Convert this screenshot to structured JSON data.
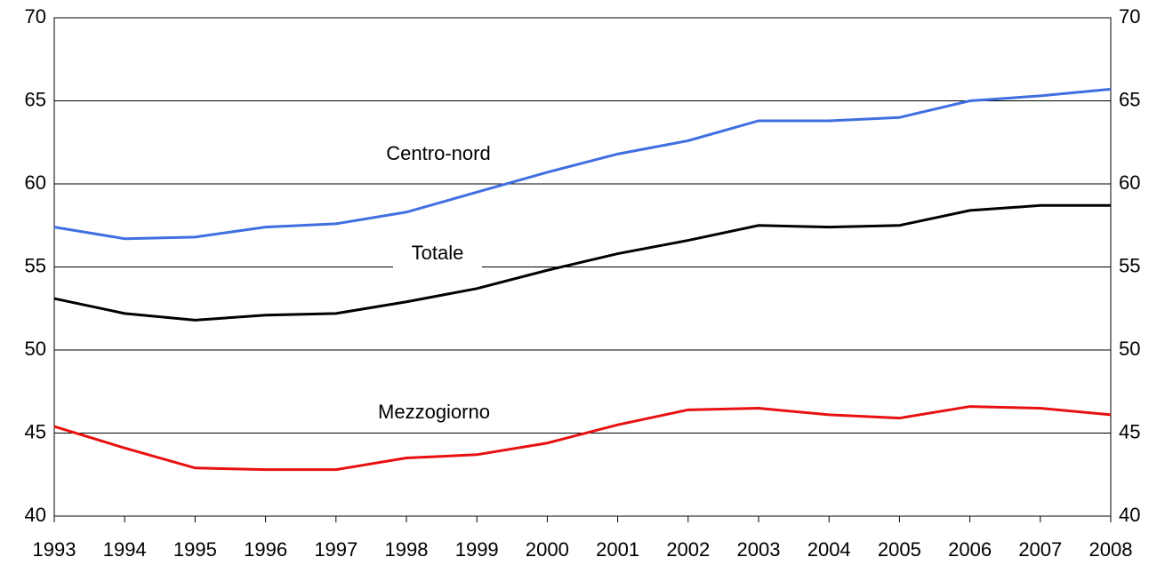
{
  "chart_data": {
    "type": "line",
    "x": [
      1993,
      1994,
      1995,
      1996,
      1997,
      1998,
      1999,
      2000,
      2001,
      2002,
      2003,
      2004,
      2005,
      2006,
      2007,
      2008
    ],
    "xlim": [
      1993,
      2008
    ],
    "xticks": [
      1993,
      1994,
      1995,
      1996,
      1997,
      1998,
      1999,
      2000,
      2001,
      2002,
      2003,
      2004,
      2005,
      2006,
      2007,
      2008
    ],
    "ylim": [
      40,
      70
    ],
    "yticks": [
      40,
      45,
      50,
      55,
      60,
      65,
      70
    ],
    "y2lim": [
      40,
      70
    ],
    "y2ticks": [
      40,
      45,
      50,
      55,
      60,
      65,
      70
    ],
    "grid": true,
    "series": [
      {
        "name": "Centro-nord",
        "color": "#3f6fe0",
        "values": [
          57.4,
          56.7,
          56.8,
          57.4,
          57.6,
          58.3,
          59.5,
          60.7,
          61.8,
          62.6,
          63.8,
          63.8,
          64.0,
          65.0,
          65.3,
          65.7
        ]
      },
      {
        "name": "Totale",
        "color": "#000000",
        "values": [
          53.1,
          52.2,
          51.8,
          52.1,
          52.2,
          52.9,
          53.7,
          54.8,
          55.8,
          56.6,
          57.5,
          57.4,
          57.5,
          58.4,
          58.7,
          58.7
        ]
      },
      {
        "name": "Mezzogiorno",
        "color": "#e81010",
        "values": [
          45.4,
          44.1,
          42.9,
          42.8,
          42.8,
          43.5,
          43.7,
          44.4,
          45.5,
          46.4,
          46.5,
          46.1,
          45.9,
          46.6,
          46.5,
          46.1
        ]
      }
    ]
  }
}
